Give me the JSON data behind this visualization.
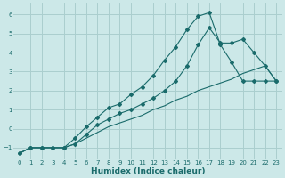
{
  "xlabel": "Humidex (Indice chaleur)",
  "bg_color": "#cce8e8",
  "grid_color": "#aacece",
  "line_color": "#1a6b6b",
  "xlim": [
    -0.5,
    23.5
  ],
  "ylim": [
    -1.6,
    6.6
  ],
  "xticks": [
    0,
    1,
    2,
    3,
    4,
    5,
    6,
    7,
    8,
    9,
    10,
    11,
    12,
    13,
    14,
    15,
    16,
    17,
    18,
    19,
    20,
    21,
    22,
    23
  ],
  "yticks": [
    -1,
    0,
    1,
    2,
    3,
    4,
    5,
    6
  ],
  "curve1_x": [
    0,
    1,
    2,
    3,
    4,
    5,
    6,
    7,
    8,
    9,
    10,
    11,
    12,
    13,
    14,
    15,
    16,
    17,
    18,
    19,
    20,
    21,
    22,
    23
  ],
  "curve1_y": [
    -1.3,
    -1.0,
    -1.0,
    -1.0,
    -1.0,
    -0.8,
    -0.5,
    -0.2,
    0.1,
    0.3,
    0.5,
    0.7,
    1.0,
    1.2,
    1.5,
    1.7,
    2.0,
    2.2,
    2.4,
    2.6,
    2.9,
    3.1,
    3.3,
    2.5
  ],
  "curve2_x": [
    0,
    1,
    2,
    3,
    4,
    5,
    6,
    7,
    8,
    9,
    10,
    11,
    12,
    13,
    14,
    15,
    16,
    17,
    18,
    19,
    20,
    21,
    22,
    23
  ],
  "curve2_y": [
    -1.3,
    -1.0,
    -1.0,
    -1.0,
    -1.0,
    -0.8,
    -0.3,
    0.2,
    0.5,
    0.8,
    1.0,
    1.3,
    1.6,
    2.0,
    2.5,
    3.3,
    4.4,
    5.3,
    4.5,
    4.5,
    4.7,
    4.0,
    3.3,
    2.5
  ],
  "curve3_x": [
    0,
    1,
    2,
    3,
    4,
    5,
    6,
    7,
    8,
    9,
    10,
    11,
    12,
    13,
    14,
    15,
    16,
    17,
    18,
    19,
    20,
    21,
    22,
    23
  ],
  "curve3_y": [
    -1.3,
    -1.0,
    -1.0,
    -1.0,
    -1.0,
    -0.5,
    0.1,
    0.6,
    1.1,
    1.3,
    1.8,
    2.2,
    2.8,
    3.6,
    4.3,
    5.2,
    5.9,
    6.1,
    4.4,
    3.5,
    2.5,
    2.5,
    2.5,
    2.5
  ]
}
